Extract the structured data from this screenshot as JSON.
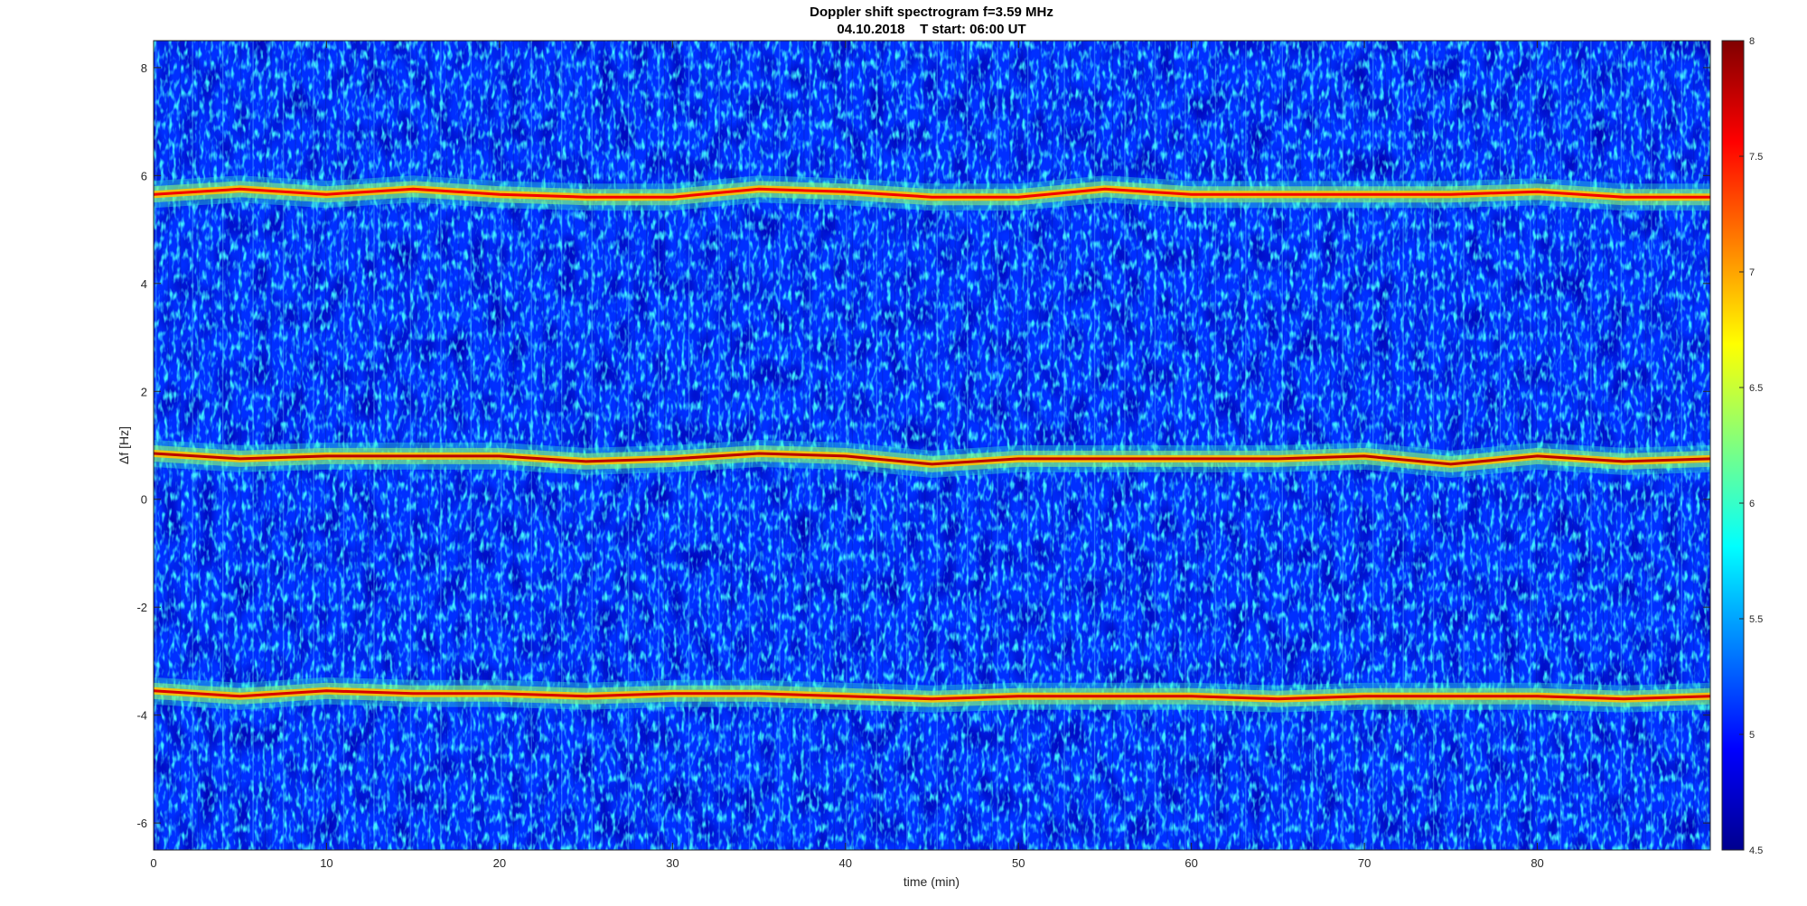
{
  "chart_data": {
    "type": "heatmap",
    "title": "Doppler shift spectrogram f=3.59 MHz",
    "subtitle": "04.10.2018    T start: 06:00 UT",
    "xlabel": "time (min)",
    "ylabel": "Δf [Hz]",
    "xlim": [
      0,
      90
    ],
    "ylim": [
      -6.5,
      8.5
    ],
    "x_ticks": [
      0,
      10,
      20,
      30,
      40,
      50,
      60,
      70,
      80
    ],
    "y_ticks": [
      -6,
      -4,
      -2,
      0,
      2,
      4,
      6,
      8
    ],
    "colorbar": {
      "range": [
        4.5,
        8
      ],
      "ticks": [
        4.5,
        5,
        5.5,
        6,
        6.5,
        7,
        7.5,
        8
      ],
      "colormap": "jet"
    },
    "background_level": 5.1,
    "series": [
      {
        "x": [
          0,
          5,
          10,
          15,
          20,
          25,
          30,
          35,
          40,
          45,
          50,
          55,
          60,
          65,
          70,
          75,
          80,
          85,
          90
        ],
        "values": [
          5.65,
          5.75,
          5.65,
          5.75,
          5.65,
          5.6,
          5.6,
          5.75,
          5.7,
          5.6,
          5.6,
          5.75,
          5.65,
          5.65,
          5.65,
          5.65,
          5.7,
          5.6,
          5.6
        ],
        "peak_level": 7.6
      },
      {
        "x": [
          0,
          5,
          10,
          15,
          20,
          25,
          30,
          35,
          40,
          45,
          50,
          55,
          60,
          65,
          70,
          75,
          80,
          85,
          90
        ],
        "values": [
          0.85,
          0.75,
          0.8,
          0.8,
          0.8,
          0.7,
          0.75,
          0.85,
          0.8,
          0.65,
          0.75,
          0.75,
          0.75,
          0.75,
          0.8,
          0.65,
          0.8,
          0.7,
          0.75
        ],
        "peak_level": 7.8
      },
      {
        "x": [
          0,
          5,
          10,
          15,
          20,
          25,
          30,
          35,
          40,
          45,
          50,
          55,
          60,
          65,
          70,
          75,
          80,
          85,
          90
        ],
        "values": [
          -3.55,
          -3.65,
          -3.55,
          -3.6,
          -3.6,
          -3.65,
          -3.6,
          -3.6,
          -3.65,
          -3.7,
          -3.65,
          -3.65,
          -3.65,
          -3.7,
          -3.65,
          -3.65,
          -3.65,
          -3.7,
          -3.65
        ],
        "peak_level": 7.7
      }
    ]
  }
}
